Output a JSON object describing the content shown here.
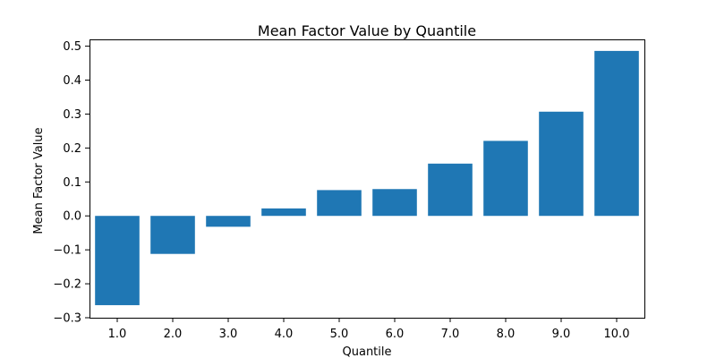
{
  "chart_data": {
    "type": "bar",
    "title": "Mean Factor Value by Quantile",
    "xlabel": "Quantile",
    "ylabel": "Mean Factor Value",
    "categories": [
      "1.0",
      "2.0",
      "3.0",
      "4.0",
      "5.0",
      "6.0",
      "7.0",
      "8.0",
      "9.0",
      "10.0"
    ],
    "values": [
      -0.263,
      -0.112,
      -0.032,
      0.022,
      0.076,
      0.079,
      0.154,
      0.221,
      0.307,
      0.486
    ],
    "ylim": [
      -0.3,
      0.52
    ],
    "yticks": [
      -0.3,
      -0.2,
      -0.1,
      0.0,
      0.1,
      0.2,
      0.3,
      0.4,
      0.5
    ],
    "ytick_labels": [
      "−0.3",
      "−0.2",
      "−0.1",
      "0.0",
      "0.1",
      "0.2",
      "0.3",
      "0.4",
      "0.5"
    ],
    "bar_color": "#1f77b4",
    "grid": false,
    "legend": false
  }
}
